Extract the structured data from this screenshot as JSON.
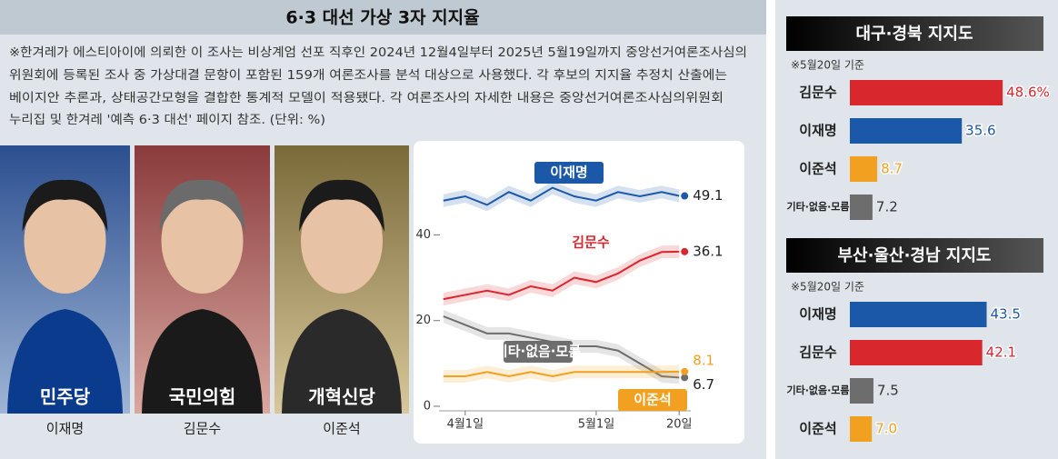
{
  "header": {
    "title": "6·3 대선 가상 3자 지지율",
    "note": [
      "※한겨레가 에스티아이에 의뢰한 이 조사는 비상계엄 선포 직후인 2024년 12월4일부터 2025년 5월19일까지 중앙선거여론조사심의",
      "위원회에 등록된 조사 중 가상대결 문항이 포함된 159개 여론조사를 분석 대상으로 사용했다. 각 후보의 지지율 추정치 산출에는",
      "베이지안 추론과, 상태공간모형을 결합한 통계적 모델이 적용됐다. 각 여론조사의 자세한 내용은 중앙선거여론조사심의위원회",
      "누리집 및 한겨레 '예측 6·3 대선' 페이지 참조. (단위: %)"
    ]
  },
  "candidates": [
    {
      "party": "민주당",
      "name": "이재명"
    },
    {
      "party": "국민의힘",
      "name": "김문수"
    },
    {
      "party": "개혁신당",
      "name": "이준석"
    }
  ],
  "chart_data": [
    {
      "type": "line",
      "x": [
        -5,
        0,
        5,
        10,
        15,
        20,
        25,
        30,
        35,
        40,
        45,
        49
      ],
      "xlim": [
        -6,
        50
      ],
      "xticks": [
        {
          "value": 0,
          "label": "4월1일"
        },
        {
          "value": 30,
          "label": "5월1일"
        },
        {
          "value": 49,
          "label": "20일"
        }
      ],
      "ylim": [
        0,
        56
      ],
      "yticks": [
        0,
        20,
        40
      ],
      "series": [
        {
          "name": "이재명",
          "color": "#1c58a8",
          "values": [
            48,
            49,
            47,
            50,
            48,
            51,
            49,
            48,
            50,
            49,
            50,
            49.1
          ]
        },
        {
          "name": "김문수",
          "color": "#d9272e",
          "values": [
            25,
            26,
            27,
            26,
            28,
            27,
            30,
            29,
            31,
            34,
            36,
            36.1
          ]
        },
        {
          "name": "기타·없음·모름",
          "color": "#6d6d6d",
          "values": [
            21,
            19,
            17,
            17,
            16,
            15,
            14,
            14,
            13,
            10,
            7,
            6.7
          ]
        },
        {
          "name": "이준석",
          "color": "#f2a01f",
          "values": [
            7,
            7,
            8,
            7,
            8,
            7,
            8,
            8,
            8,
            8,
            8,
            8.1
          ]
        }
      ]
    },
    {
      "type": "bar",
      "title": "대구·경북 지지도",
      "note": "※5월20일 기준",
      "categories": [
        "김문수",
        "이재명",
        "이준석",
        "기타·없음·모름"
      ],
      "values": [
        48.6,
        35.6,
        8.7,
        7.2
      ],
      "value_labels": [
        "48.6%",
        "35.6",
        "8.7",
        "7.2"
      ],
      "colors": [
        "#d9272e",
        "#1c58a8",
        "#f2a01f",
        "#6d6d6d"
      ]
    },
    {
      "type": "bar",
      "title": "부산·울산·경남 지지도",
      "note": "※5월20일 기준",
      "categories": [
        "이재명",
        "김문수",
        "기타·없음·모름",
        "이준석"
      ],
      "values": [
        43.5,
        42.1,
        7.5,
        7.0
      ],
      "value_labels": [
        "43.5",
        "42.1",
        "7.5",
        "7.0"
      ],
      "colors": [
        "#1c58a8",
        "#d9272e",
        "#6d6d6d",
        "#f2a01f"
      ]
    }
  ]
}
